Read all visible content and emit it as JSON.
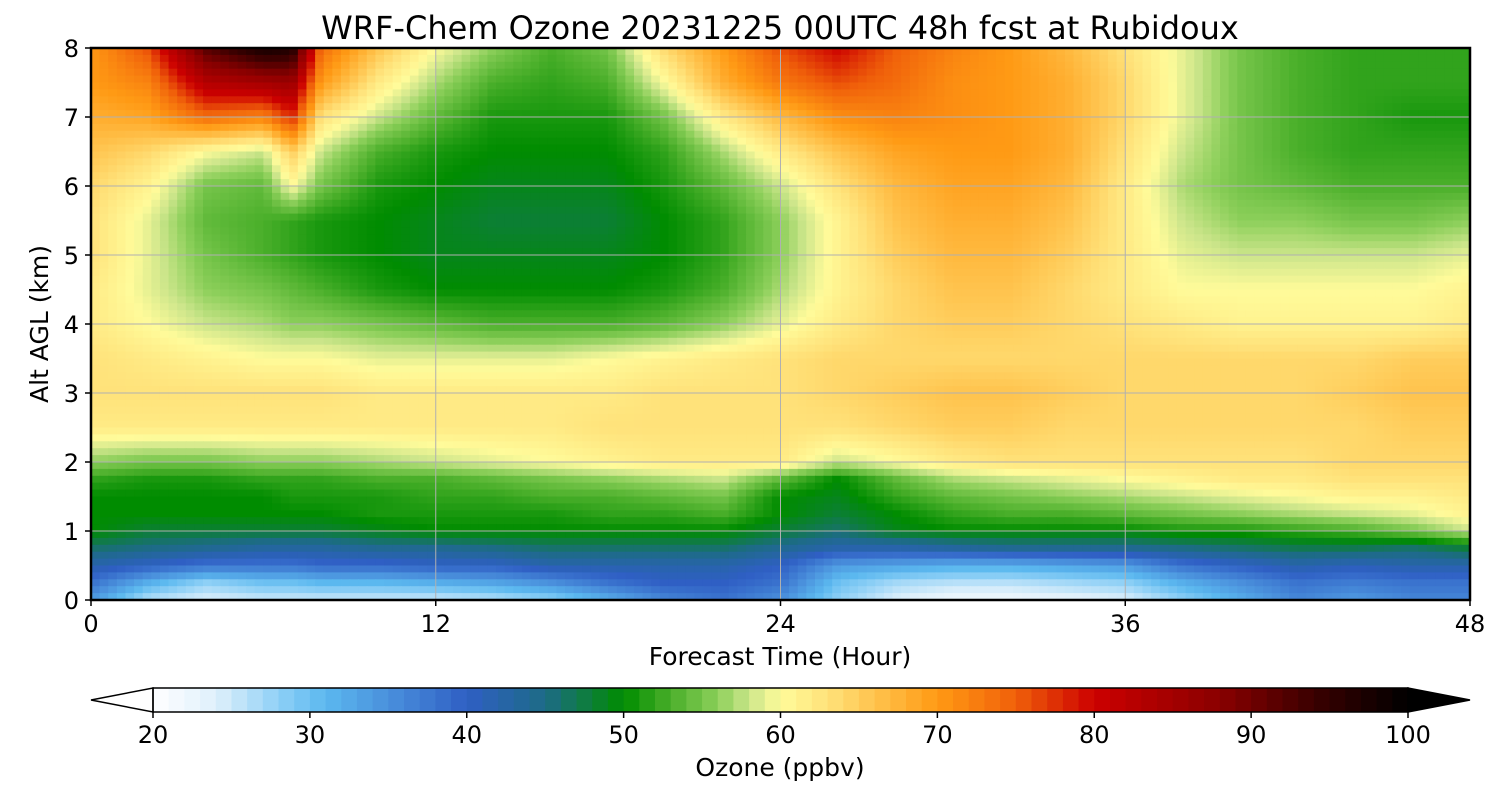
{
  "chart_data": {
    "type": "heatmap",
    "title": "WRF-Chem Ozone  20231225 00UTC 48h fcst at Rubidoux",
    "xlabel": "Forecast Time (Hour)",
    "ylabel": "Alt AGL (km)",
    "xlim": [
      0,
      48
    ],
    "ylim": [
      0,
      8
    ],
    "xticks": [
      "0",
      "12",
      "24",
      "36",
      "48"
    ],
    "yticks": [
      "0",
      "1",
      "2",
      "3",
      "4",
      "5",
      "6",
      "7",
      "8"
    ],
    "grid": true,
    "x_hours": [
      0,
      2,
      4,
      6,
      7,
      8,
      10,
      12,
      14,
      16,
      18,
      20,
      22,
      24,
      26,
      28,
      30,
      32,
      34,
      36,
      38,
      40,
      42,
      44,
      46,
      48
    ],
    "z_km": [
      0,
      0.25,
      0.5,
      0.75,
      1,
      1.25,
      1.5,
      1.75,
      2,
      2.5,
      3,
      3.5,
      4,
      4.5,
      5,
      5.5,
      6,
      6.5,
      7,
      7.5,
      8
    ],
    "ozone_ppbv_rows_by_z": [
      [
        34,
        26,
        24,
        25,
        25,
        25,
        25,
        25,
        26,
        28,
        32,
        36,
        38,
        35,
        28,
        24,
        22,
        22,
        23,
        24,
        28,
        32,
        36,
        34,
        36,
        36
      ],
      [
        38,
        32,
        28,
        30,
        30,
        31,
        31,
        32,
        33,
        35,
        38,
        40,
        40,
        38,
        30,
        27,
        26,
        26,
        27,
        28,
        32,
        35,
        38,
        37,
        38,
        38
      ],
      [
        42,
        40,
        38,
        38,
        38,
        39,
        39,
        40,
        40,
        42,
        42,
        42,
        42,
        40,
        34,
        33,
        32,
        32,
        33,
        34,
        38,
        40,
        42,
        41,
        42,
        42
      ],
      [
        46,
        45,
        44,
        43,
        43,
        43,
        44,
        44,
        45,
        46,
        46,
        46,
        46,
        44,
        42,
        42,
        43,
        44,
        44,
        44,
        45,
        46,
        47,
        47,
        46,
        48
      ],
      [
        50,
        48,
        48,
        48,
        48,
        48,
        49,
        50,
        50,
        50,
        50,
        50,
        50,
        48,
        46,
        49,
        50,
        50,
        50,
        50,
        51,
        51,
        52,
        53,
        55,
        58
      ],
      [
        50,
        50,
        50,
        50,
        50,
        50,
        51,
        51,
        51,
        51,
        52,
        52,
        53,
        50,
        48,
        50,
        52,
        53,
        53,
        54,
        55,
        56,
        57,
        58,
        59,
        61
      ],
      [
        50,
        50,
        50,
        50,
        51,
        51,
        51,
        52,
        52,
        53,
        53,
        54,
        55,
        50,
        49,
        52,
        54,
        55,
        56,
        57,
        58,
        59,
        60,
        61,
        61,
        62
      ],
      [
        52,
        51,
        51,
        52,
        52,
        52,
        53,
        53,
        54,
        55,
        56,
        57,
        58,
        54,
        50,
        54,
        57,
        58,
        59,
        60,
        61,
        62,
        62,
        63,
        63,
        63
      ],
      [
        56,
        55,
        55,
        56,
        56,
        56,
        57,
        58,
        59,
        60,
        61,
        62,
        62,
        62,
        58,
        60,
        62,
        63,
        63,
        63,
        63,
        63,
        63,
        64,
        64,
        64
      ],
      [
        62,
        62,
        62,
        62,
        62,
        62,
        62,
        62,
        62,
        62,
        63,
        63,
        63,
        63,
        63,
        64,
        65,
        65,
        64,
        64,
        64,
        64,
        64,
        64,
        65,
        65
      ],
      [
        63,
        63,
        63,
        63,
        63,
        63,
        62,
        62,
        62,
        62,
        62,
        63,
        63,
        63,
        64,
        65,
        66,
        66,
        65,
        64,
        64,
        64,
        64,
        65,
        66,
        66
      ],
      [
        63,
        62,
        61,
        60,
        60,
        60,
        59,
        59,
        59,
        59,
        60,
        61,
        62,
        63,
        64,
        64,
        64,
        64,
        64,
        64,
        64,
        64,
        64,
        64,
        65,
        65
      ],
      [
        62,
        60,
        58,
        57,
        56,
        56,
        55,
        54,
        53,
        53,
        53,
        54,
        56,
        59,
        62,
        64,
        65,
        65,
        64,
        63,
        62,
        61,
        61,
        61,
        61,
        62
      ],
      [
        62,
        59,
        56,
        55,
        54,
        53,
        51,
        50,
        50,
        50,
        50,
        51,
        53,
        57,
        61,
        64,
        66,
        66,
        64,
        62,
        60,
        60,
        60,
        60,
        60,
        61
      ],
      [
        63,
        59,
        55,
        53,
        52,
        51,
        50,
        49,
        49,
        49,
        49,
        50,
        52,
        56,
        61,
        65,
        67,
        67,
        65,
        62,
        59,
        58,
        58,
        58,
        58,
        59
      ],
      [
        63,
        59,
        54,
        53,
        52,
        51,
        50,
        49,
        48,
        48,
        48,
        50,
        52,
        56,
        61,
        66,
        68,
        68,
        66,
        62,
        58,
        56,
        56,
        55,
        55,
        56
      ],
      [
        64,
        61,
        55,
        54,
        60,
        55,
        51,
        50,
        49,
        49,
        49,
        51,
        54,
        58,
        63,
        67,
        69,
        69,
        67,
        62,
        57,
        55,
        54,
        53,
        53,
        53
      ],
      [
        66,
        64,
        60,
        58,
        65,
        58,
        53,
        51,
        50,
        50,
        50,
        52,
        57,
        62,
        66,
        69,
        70,
        70,
        68,
        63,
        58,
        55,
        53,
        52,
        52,
        52
      ],
      [
        68,
        69,
        74,
        72,
        78,
        63,
        58,
        54,
        51,
        51,
        51,
        55,
        62,
        67,
        71,
        72,
        71,
        70,
        68,
        64,
        59,
        55,
        53,
        52,
        51,
        51
      ],
      [
        70,
        72,
        83,
        85,
        86,
        70,
        62,
        57,
        53,
        52,
        53,
        60,
        68,
        73,
        76,
        74,
        71,
        70,
        68,
        64,
        59,
        55,
        53,
        52,
        52,
        52
      ],
      [
        70,
        76,
        92,
        98,
        97,
        74,
        66,
        60,
        56,
        53,
        55,
        64,
        70,
        76,
        80,
        75,
        72,
        70,
        67,
        63,
        59,
        55,
        53,
        52,
        52,
        52
      ]
    ],
    "colorbar": {
      "label": "Ozone  (ppbv)",
      "min": 20,
      "max": 100,
      "ticks": [
        "20",
        "30",
        "40",
        "50",
        "60",
        "70",
        "80",
        "90",
        "100"
      ],
      "extend": "both",
      "stops": [
        [
          20,
          "#ffffff"
        ],
        [
          24,
          "#dff0fb"
        ],
        [
          28,
          "#8fd0f6"
        ],
        [
          31,
          "#5bb8ef"
        ],
        [
          35,
          "#4a90dc"
        ],
        [
          40,
          "#2f5fc4"
        ],
        [
          45,
          "#1d6b86"
        ],
        [
          50,
          "#008c00"
        ],
        [
          53,
          "#4aaf2a"
        ],
        [
          56,
          "#8ccf5a"
        ],
        [
          58,
          "#cbe58a"
        ],
        [
          60,
          "#fffb9a"
        ],
        [
          63,
          "#ffe27a"
        ],
        [
          66,
          "#ffc34d"
        ],
        [
          70,
          "#ff9a14"
        ],
        [
          75,
          "#f0600a"
        ],
        [
          80,
          "#cc0000"
        ],
        [
          88,
          "#8a0000"
        ],
        [
          94,
          "#3a0000"
        ],
        [
          100,
          "#000000"
        ]
      ]
    }
  }
}
